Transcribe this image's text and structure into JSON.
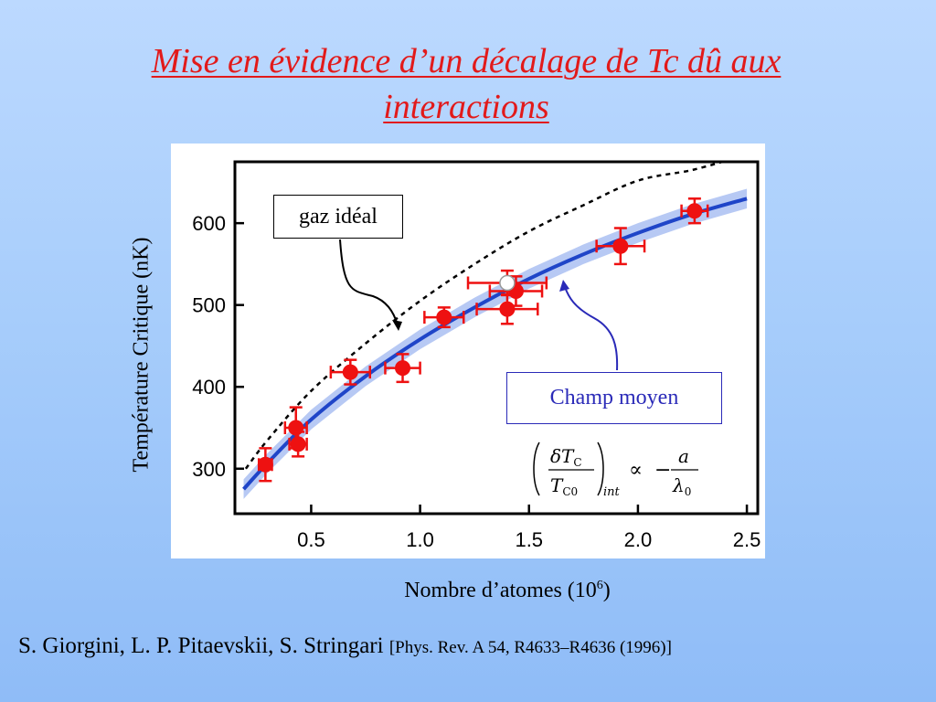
{
  "title_lines": [
    "Mise en évidence d’un décalage de Tc dû aux",
    "interactions"
  ],
  "ylabel": "Température Critique (nK)",
  "xlabel_text": "Nombre d’atomes (10",
  "xlabel_exp": "6",
  "xlabel_close": ")",
  "annotation_ideal": "gaz idéal",
  "annotation_champ": "Champ moyen",
  "formula": {
    "delta_num": "δT",
    "sub_c": "C",
    "den": "T",
    "sub_c0": "C0",
    "subscript_int": "int",
    "prop": "∝",
    "minus": "−",
    "a": "a",
    "lambda": "λ",
    "lambda_sub": "0"
  },
  "citation": {
    "authors": "S. Giorgini, L. P. Pitaevskii, S. Stringari",
    "ref": "[Phys. Rev. A 54, R4633–R4636 (1996)]"
  },
  "colors": {
    "title": "#e21a1a",
    "data_points": "#ee1111",
    "mean_field": "#1f45c8",
    "band": "#aabff2",
    "ideal_gas": "#000000"
  },
  "chart_data": {
    "type": "scatter",
    "xlim": [
      0.15,
      2.55
    ],
    "ylim": [
      245,
      675
    ],
    "xticks": [
      0.5,
      1.0,
      1.5,
      2.0,
      2.5
    ],
    "xtick_labels": [
      "0.5",
      "1.0",
      "1.5",
      "2.0",
      "2.5"
    ],
    "yticks": [
      300,
      400,
      500,
      600
    ],
    "ytick_labels": [
      "300",
      "400",
      "500",
      "600"
    ],
    "points": [
      {
        "x": 0.29,
        "y": 305,
        "xerr": 0.03,
        "yerr": 20
      },
      {
        "x": 0.43,
        "y": 350,
        "xerr": 0.05,
        "yerr": 25
      },
      {
        "x": 0.44,
        "y": 330,
        "xerr": 0.04,
        "yerr": 15
      },
      {
        "x": 0.68,
        "y": 418,
        "xerr": 0.09,
        "yerr": 15
      },
      {
        "x": 0.92,
        "y": 423,
        "xerr": 0.08,
        "yerr": 17
      },
      {
        "x": 1.11,
        "y": 485,
        "xerr": 0.09,
        "yerr": 12
      },
      {
        "x": 1.4,
        "y": 495,
        "xerr": 0.14,
        "yerr": 18
      },
      {
        "x": 1.44,
        "y": 517,
        "xerr": 0.12,
        "yerr": 18
      },
      {
        "x": 1.92,
        "y": 572,
        "xerr": 0.11,
        "yerr": 22
      },
      {
        "x": 2.26,
        "y": 615,
        "xerr": 0.06,
        "yerr": 15
      }
    ],
    "open_point": {
      "x": 1.4,
      "y": 527,
      "xerr": 0.18,
      "yerr": 15
    },
    "mean_field_curve": {
      "x": [
        0.19,
        0.3,
        0.5,
        0.75,
        1.0,
        1.25,
        1.5,
        1.75,
        2.0,
        2.25,
        2.5
      ],
      "y": [
        275,
        307,
        360,
        413,
        458,
        497,
        532,
        562,
        588,
        611,
        630
      ]
    },
    "mean_field_band": 12,
    "ideal_gas_curve": {
      "x": [
        0.2,
        0.3,
        0.5,
        0.75,
        1.0,
        1.25,
        1.5,
        1.75,
        2.0,
        2.25,
        2.45
      ],
      "y": [
        300,
        335,
        395,
        453,
        505,
        550,
        590,
        622,
        652,
        665,
        680
      ]
    }
  }
}
